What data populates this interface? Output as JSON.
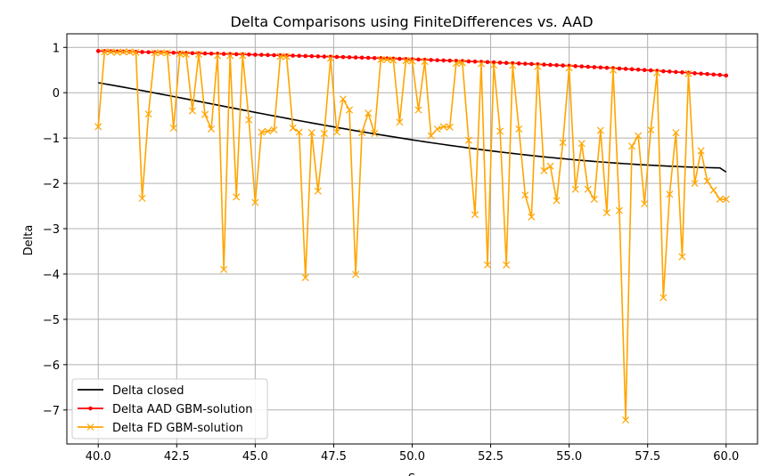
{
  "chart_data": {
    "type": "line",
    "title": "Delta Comparisons using FiniteDifferences vs. AAD",
    "xlabel": "S",
    "ylabel": "Delta",
    "xlim": [
      39.0,
      61.0
    ],
    "ylim": [
      -7.75,
      1.3
    ],
    "xticks": [
      40.0,
      42.5,
      45.0,
      47.5,
      50.0,
      52.5,
      55.0,
      57.5,
      60.0
    ],
    "xtick_labels": [
      "40.0",
      "42.5",
      "45.0",
      "47.5",
      "50.0",
      "52.5",
      "55.0",
      "57.5",
      "60.0"
    ],
    "yticks": [
      1,
      0,
      -1,
      -2,
      -3,
      -4,
      -5,
      -6,
      -7
    ],
    "ytick_labels": [
      "1",
      "0",
      "−1",
      "−2",
      "−3",
      "−4",
      "−5",
      "−6",
      "−7"
    ],
    "grid": true,
    "legend_position": "lower-left",
    "x": [
      40.0,
      40.2,
      40.4,
      40.6,
      40.8,
      41.0,
      41.2,
      41.4,
      41.6,
      41.8,
      42.0,
      42.2,
      42.4,
      42.6,
      42.8,
      43.0,
      43.2,
      43.4,
      43.6,
      43.8,
      44.0,
      44.2,
      44.4,
      44.6,
      44.8,
      45.0,
      45.2,
      45.4,
      45.6,
      45.8,
      46.0,
      46.2,
      46.4,
      46.6,
      46.8,
      47.0,
      47.2,
      47.4,
      47.6,
      47.8,
      48.0,
      48.2,
      48.4,
      48.6,
      48.8,
      49.0,
      49.2,
      49.4,
      49.6,
      49.8,
      50.0,
      50.2,
      50.4,
      50.6,
      50.8,
      51.0,
      51.2,
      51.4,
      51.6,
      51.8,
      52.0,
      52.2,
      52.4,
      52.6,
      52.8,
      53.0,
      53.2,
      53.4,
      53.6,
      53.8,
      54.0,
      54.2,
      54.4,
      54.6,
      54.8,
      55.0,
      55.2,
      55.4,
      55.6,
      55.8,
      56.0,
      56.2,
      56.4,
      56.6,
      56.8,
      57.0,
      57.2,
      57.4,
      57.6,
      57.8,
      58.0,
      58.2,
      58.4,
      58.6,
      58.8,
      59.0,
      59.2,
      59.4,
      59.6,
      59.8,
      60.0
    ],
    "series": [
      {
        "name": "Delta closed",
        "color": "#000000",
        "marker": "none",
        "values": [
          0.22,
          0.196,
          0.172,
          0.148,
          0.123,
          0.098,
          0.073,
          0.047,
          0.021,
          -0.005,
          -0.031,
          -0.057,
          -0.084,
          -0.11,
          -0.137,
          -0.164,
          -0.191,
          -0.218,
          -0.245,
          -0.272,
          -0.299,
          -0.326,
          -0.353,
          -0.379,
          -0.406,
          -0.433,
          -0.459,
          -0.486,
          -0.512,
          -0.538,
          -0.564,
          -0.59,
          -0.616,
          -0.641,
          -0.667,
          -0.692,
          -0.717,
          -0.741,
          -0.766,
          -0.79,
          -0.814,
          -0.838,
          -0.861,
          -0.884,
          -0.907,
          -0.93,
          -0.952,
          -0.974,
          -0.996,
          -1.018,
          -1.04,
          -1.061,
          -1.082,
          -1.102,
          -1.122,
          -1.142,
          -1.162,
          -1.181,
          -1.2,
          -1.219,
          -1.237,
          -1.255,
          -1.273,
          -1.29,
          -1.307,
          -1.323,
          -1.339,
          -1.355,
          -1.371,
          -1.386,
          -1.4,
          -1.415,
          -1.429,
          -1.442,
          -1.455,
          -1.468,
          -1.481,
          -1.493,
          -1.504,
          -1.516,
          -1.527,
          -1.537,
          -1.547,
          -1.557,
          -1.566,
          -1.575,
          -1.584,
          -1.592,
          -1.6,
          -1.607,
          -1.614,
          -1.621,
          -1.627,
          -1.633,
          -1.638,
          -1.643,
          -1.648,
          -1.652,
          -1.656,
          -1.659,
          -1.75
        ]
      },
      {
        "name": "Delta AAD GBM-solution",
        "color": "#ff0000",
        "marker": "dot",
        "values": [
          0.92,
          0.917,
          0.914,
          0.911,
          0.908,
          0.905,
          0.901,
          0.898,
          0.895,
          0.892,
          0.889,
          0.886,
          0.883,
          0.879,
          0.876,
          0.873,
          0.87,
          0.866,
          0.863,
          0.86,
          0.857,
          0.853,
          0.85,
          0.846,
          0.843,
          0.839,
          0.836,
          0.832,
          0.829,
          0.825,
          0.821,
          0.818,
          0.814,
          0.81,
          0.806,
          0.802,
          0.798,
          0.794,
          0.79,
          0.786,
          0.782,
          0.778,
          0.774,
          0.77,
          0.765,
          0.761,
          0.756,
          0.752,
          0.747,
          0.743,
          0.738,
          0.733,
          0.728,
          0.723,
          0.718,
          0.713,
          0.708,
          0.703,
          0.698,
          0.692,
          0.687,
          0.681,
          0.676,
          0.67,
          0.664,
          0.658,
          0.652,
          0.646,
          0.64,
          0.634,
          0.627,
          0.621,
          0.614,
          0.608,
          0.601,
          0.594,
          0.587,
          0.58,
          0.572,
          0.565,
          0.557,
          0.55,
          0.542,
          0.534,
          0.526,
          0.518,
          0.51,
          0.501,
          0.493,
          0.484,
          0.475,
          0.467,
          0.458,
          0.449,
          0.44,
          0.43,
          0.421,
          0.412,
          0.402,
          0.393,
          0.38
        ]
      },
      {
        "name": "Delta FD GBM-solution",
        "color": "#ffa500",
        "marker": "x",
        "values": [
          -0.75,
          0.9,
          0.9,
          0.89,
          0.9,
          0.9,
          0.89,
          -2.33,
          -0.47,
          0.88,
          0.88,
          0.88,
          -0.78,
          0.86,
          0.85,
          -0.4,
          0.85,
          -0.48,
          -0.8,
          0.82,
          -3.9,
          0.82,
          -2.3,
          0.82,
          -0.6,
          -2.42,
          -0.87,
          -0.85,
          -0.82,
          0.8,
          0.8,
          -0.78,
          -0.87,
          -4.08,
          -0.88,
          -2.17,
          -0.9,
          0.76,
          -0.87,
          -0.14,
          -0.38,
          -4.01,
          -0.88,
          -0.45,
          -0.9,
          0.73,
          0.73,
          0.72,
          -0.65,
          0.71,
          0.7,
          -0.38,
          0.69,
          -0.95,
          -0.8,
          -0.75,
          -0.76,
          0.65,
          0.66,
          -1.05,
          -2.69,
          0.64,
          -3.8,
          0.61,
          -0.85,
          -3.8,
          0.6,
          -0.8,
          -2.26,
          -2.74,
          0.58,
          -1.72,
          -1.62,
          -2.38,
          -1.1,
          0.55,
          -2.13,
          -1.12,
          -2.13,
          -2.35,
          -0.83,
          -2.65,
          0.5,
          -2.6,
          -7.22,
          -1.18,
          -0.95,
          -2.45,
          -0.82,
          0.44,
          -4.52,
          -2.24,
          -0.88,
          -3.62,
          0.42,
          -2.0,
          -1.28,
          -1.95,
          -2.15,
          -2.35,
          -2.35
        ]
      }
    ]
  }
}
